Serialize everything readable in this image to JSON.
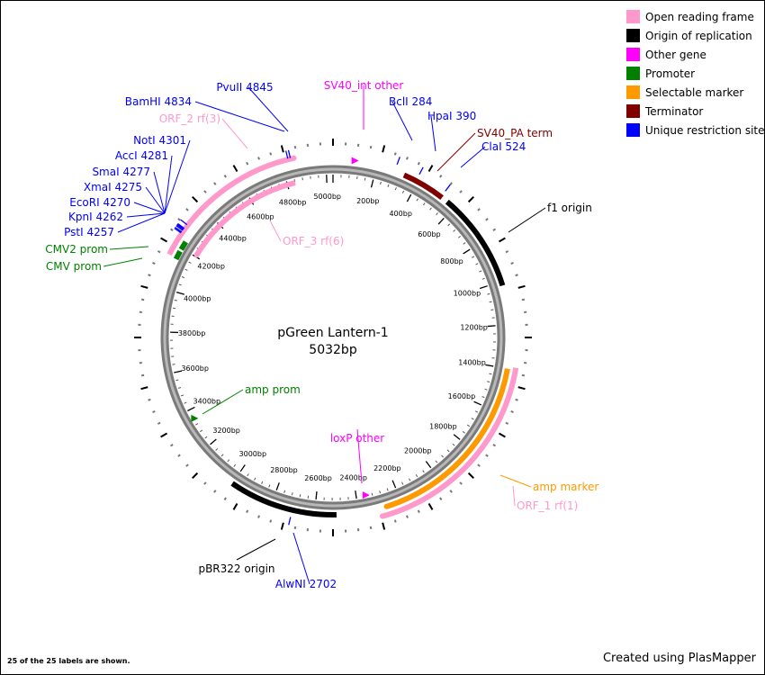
{
  "plasmid": {
    "name": "pGreen Lantern-1",
    "length_label": "5032bp",
    "length": 5032
  },
  "legend": [
    {
      "label": "Open reading frame",
      "color": "#ff99cc"
    },
    {
      "label": "Origin of replication",
      "color": "#000000"
    },
    {
      "label": "Other gene",
      "color": "#ff00ff"
    },
    {
      "label": "Promoter",
      "color": "#008000"
    },
    {
      "label": "Selectable marker",
      "color": "#ff9900"
    },
    {
      "label": "Terminator",
      "color": "#800000"
    },
    {
      "label": "Unique restriction site",
      "color": "#0000ff"
    }
  ],
  "ruler_labels": [
    "5000bp",
    "200bp",
    "400bp",
    "600bp",
    "800bp",
    "1000bp",
    "1200bp",
    "1400bp",
    "1600bp",
    "1800bp",
    "2000bp",
    "2200bp",
    "2400bp",
    "2600bp",
    "2800bp",
    "3000bp",
    "3200bp",
    "3400bp",
    "3600bp",
    "3800bp",
    "4000bp",
    "4200bp",
    "4400bp",
    "4600bp",
    "4800bp"
  ],
  "features": [
    {
      "label": "ORF_2 rf(3)",
      "color": "#ff99cc",
      "start": 4150,
      "end": 4860
    },
    {
      "label": "ORF_3 rf(6)",
      "color": "#ff99cc",
      "start": 4210,
      "end": 4840
    },
    {
      "label": "ORF_1 rf(1)",
      "color": "#ff99cc",
      "start": 1390,
      "end": 2300
    },
    {
      "label": "amp marker",
      "color": "#ff9900",
      "start": 1400,
      "end": 2270
    },
    {
      "label": "f1 origin",
      "color": "#000000",
      "start": 560,
      "end": 1020
    },
    {
      "label": "pBR322 origin",
      "color": "#000000",
      "start": 2500,
      "end": 3000
    },
    {
      "label": "SV40_PA term",
      "color": "#800000",
      "start": 330,
      "end": 530
    },
    {
      "label": "SV40_int other",
      "color": "#ff00ff",
      "start": 100,
      "end": 130
    },
    {
      "label": "loxP other",
      "color": "#ff00ff",
      "start": 2330,
      "end": 2370
    },
    {
      "label": "amp prom",
      "color": "#008000",
      "start": 3340,
      "end": 3370
    },
    {
      "label": "CMV prom",
      "color": "#008000",
      "start": 4145,
      "end": 4185
    },
    {
      "label": "CMV2 prom",
      "color": "#008000",
      "start": 4195,
      "end": 4235
    }
  ],
  "sites": [
    {
      "label": "PvuII 4845",
      "pos": 4845
    },
    {
      "label": "BamHI 4834",
      "pos": 4834
    },
    {
      "label": "BclI 284",
      "pos": 284
    },
    {
      "label": "HpaI 390",
      "pos": 390
    },
    {
      "label": "ClaI 524",
      "pos": 524
    },
    {
      "label": "NotI 4301",
      "pos": 4301
    },
    {
      "label": "AccI 4281",
      "pos": 4281
    },
    {
      "label": "SmaI 4277",
      "pos": 4277
    },
    {
      "label": "XmaI 4275",
      "pos": 4275
    },
    {
      "label": "EcoRI 4270",
      "pos": 4270
    },
    {
      "label": "KpnI 4262",
      "pos": 4262
    },
    {
      "label": "PstI 4257",
      "pos": 4257
    },
    {
      "label": "AlwNI 2702",
      "pos": 2702
    }
  ],
  "footnote": "25 of the 25 labels are shown.",
  "credit": "Created using PlasMapper"
}
